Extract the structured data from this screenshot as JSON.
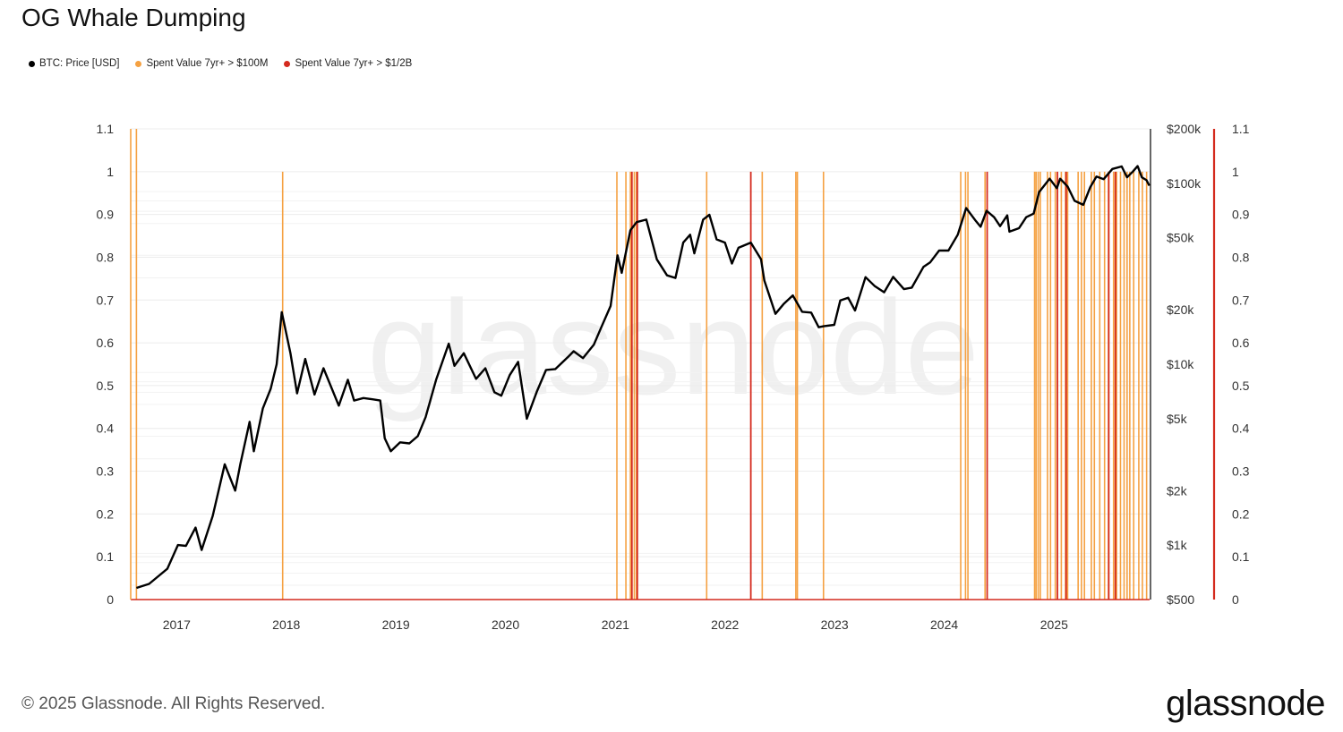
{
  "title": "OG Whale Dumping",
  "legend": [
    {
      "label": "BTC: Price [USD]",
      "color": "#000000"
    },
    {
      "label": "Spent Value 7yr+ > $100M",
      "color": "#f5a142"
    },
    {
      "label": "Spent Value 7yr+ > $1/2B",
      "color": "#d42a1e"
    }
  ],
  "footer": "© 2025 Glassnode. All Rights Reserved.",
  "logo": "glassnode",
  "chart_data": {
    "type": "line",
    "title": "OG Whale Dumping",
    "x_range": [
      "2016-08-01",
      "2025-11-15"
    ],
    "x_ticks": [
      "2017",
      "2018",
      "2019",
      "2020",
      "2021",
      "2022",
      "2023",
      "2024",
      "2025"
    ],
    "left_axis": {
      "range": [
        0,
        1.1
      ],
      "ticks": [
        "0",
        "0.1",
        "0.2",
        "0.3",
        "0.4",
        "0.5",
        "0.6",
        "0.7",
        "0.8",
        "0.9",
        "1",
        "1.1"
      ]
    },
    "right_axis_price": {
      "scale": "log",
      "range": [
        500,
        200000
      ],
      "ticks": [
        "$500",
        "$1k",
        "$2k",
        "$5k",
        "$10k",
        "$20k",
        "$50k",
        "$100k",
        "$200k"
      ],
      "tick_values": [
        500,
        1000,
        2000,
        5000,
        10000,
        20000,
        50000,
        100000,
        200000
      ]
    },
    "right_axis_2": {
      "range": [
        0,
        1.1
      ],
      "ticks": [
        "0",
        "0.1",
        "0.2",
        "0.3",
        "0.4",
        "0.5",
        "0.6",
        "0.7",
        "0.8",
        "0.9",
        "1",
        "1.1"
      ]
    },
    "grid": true,
    "legend_position": "top-left",
    "series": [
      {
        "name": "BTC: Price [USD]",
        "color": "#000000",
        "x": [
          "2016-08-20",
          "2016-10-01",
          "2016-12-01",
          "2017-01-05",
          "2017-02-01",
          "2017-03-05",
          "2017-03-25",
          "2017-05-01",
          "2017-06-10",
          "2017-07-15",
          "2017-08-01",
          "2017-09-01",
          "2017-09-15",
          "2017-10-15",
          "2017-11-10",
          "2017-11-30",
          "2017-12-17",
          "2018-01-15",
          "2018-02-06",
          "2018-03-05",
          "2018-04-05",
          "2018-05-05",
          "2018-06-25",
          "2018-07-25",
          "2018-08-15",
          "2018-09-15",
          "2018-10-15",
          "2018-11-10",
          "2018-11-25",
          "2018-12-15",
          "2019-01-15",
          "2019-02-15",
          "2019-03-15",
          "2019-04-10",
          "2019-05-15",
          "2019-06-26",
          "2019-07-15",
          "2019-08-15",
          "2019-09-25",
          "2019-10-26",
          "2019-11-25",
          "2019-12-18",
          "2020-01-15",
          "2020-02-12",
          "2020-03-12",
          "2020-04-15",
          "2020-05-15",
          "2020-06-15",
          "2020-07-28",
          "2020-08-15",
          "2020-09-15",
          "2020-10-21",
          "2020-11-15",
          "2020-12-16",
          "2021-01-08",
          "2021-01-22",
          "2021-02-20",
          "2021-03-13",
          "2021-04-14",
          "2021-05-19",
          "2021-06-22",
          "2021-07-20",
          "2021-08-15",
          "2021-09-07",
          "2021-09-21",
          "2021-10-20",
          "2021-11-10",
          "2021-12-04",
          "2022-01-01",
          "2022-01-24",
          "2022-02-15",
          "2022-03-28",
          "2022-05-01",
          "2022-05-12",
          "2022-06-18",
          "2022-07-15",
          "2022-08-15",
          "2022-09-15",
          "2022-10-15",
          "2022-11-09",
          "2022-11-25",
          "2022-12-31",
          "2023-01-20",
          "2023-02-15",
          "2023-03-10",
          "2023-04-14",
          "2023-05-15",
          "2023-06-15",
          "2023-07-15",
          "2023-08-20",
          "2023-09-15",
          "2023-10-24",
          "2023-11-15",
          "2023-12-15",
          "2024-01-15",
          "2024-02-15",
          "2024-03-14",
          "2024-04-15",
          "2024-05-01",
          "2024-05-21",
          "2024-06-15",
          "2024-07-05",
          "2024-07-29",
          "2024-08-05",
          "2024-09-06",
          "2024-09-30",
          "2024-10-25",
          "2024-11-12",
          "2024-12-17",
          "2025-01-10",
          "2025-01-21",
          "2025-02-15",
          "2025-03-10",
          "2025-04-08",
          "2025-05-01",
          "2025-05-22",
          "2025-06-15",
          "2025-07-14",
          "2025-08-14",
          "2025-09-01",
          "2025-09-20",
          "2025-10-06",
          "2025-10-20",
          "2025-11-05",
          "2025-11-14"
        ],
        "values": [
          580,
          610,
          740,
          1000,
          990,
          1250,
          940,
          1450,
          2800,
          2000,
          2800,
          4800,
          3300,
          5700,
          7300,
          10000,
          19400,
          11500,
          6900,
          10700,
          6800,
          9500,
          5900,
          8200,
          6300,
          6500,
          6400,
          6300,
          3900,
          3300,
          3700,
          3650,
          4000,
          5100,
          8200,
          13000,
          9800,
          11500,
          8300,
          9500,
          7000,
          6700,
          8700,
          10300,
          5000,
          7100,
          9300,
          9400,
          11000,
          11800,
          10800,
          12800,
          16000,
          21000,
          40000,
          32000,
          55000,
          61000,
          63000,
          38000,
          31000,
          30000,
          47000,
          52000,
          41000,
          63000,
          67000,
          49000,
          47000,
          36000,
          44000,
          47000,
          38000,
          29000,
          19000,
          21500,
          24000,
          19500,
          19300,
          16000,
          16200,
          16500,
          22500,
          23300,
          19800,
          30300,
          27000,
          25000,
          30400,
          26000,
          26500,
          34500,
          36500,
          42500,
          42500,
          52000,
          73000,
          62000,
          57500,
          70500,
          65000,
          58000,
          66500,
          54000,
          56500,
          65000,
          68000,
          89500,
          106000,
          94000,
          106000,
          96000,
          80000,
          76000,
          95000,
          109000,
          105500,
          120000,
          124000,
          108000,
          116000,
          124500,
          108000,
          104000,
          97000
        ]
      },
      {
        "name": "Spent Value 7yr+ > $100M",
        "color": "#f5a142",
        "x": [
          "2016-08-20",
          "2017-12-20",
          "2021-01-06",
          "2021-02-05",
          "2021-02-20",
          "2021-03-05",
          "2021-03-12",
          "2021-11-01",
          "2022-05-05",
          "2022-08-25",
          "2022-08-30",
          "2022-11-25",
          "2024-02-25",
          "2024-03-12",
          "2024-03-20",
          "2024-05-16",
          "2024-10-28",
          "2024-11-02",
          "2024-11-09",
          "2024-11-16",
          "2024-12-10",
          "2024-12-20",
          "2025-01-05",
          "2025-01-25",
          "2025-02-08",
          "2025-02-15",
          "2025-03-22",
          "2025-04-02",
          "2025-04-12",
          "2025-05-05",
          "2025-05-15",
          "2025-06-02",
          "2025-06-18",
          "2025-07-01",
          "2025-07-18",
          "2025-07-28",
          "2025-08-10",
          "2025-08-22",
          "2025-09-01",
          "2025-09-10",
          "2025-09-23",
          "2025-10-10",
          "2025-10-22",
          "2025-11-05"
        ],
        "values": [
          1.1,
          1,
          1,
          1,
          1,
          1,
          1,
          1,
          1,
          1,
          1,
          1,
          1,
          1,
          1,
          1,
          1,
          1,
          1,
          1,
          1,
          1,
          1,
          1,
          1,
          1,
          1,
          1,
          1,
          1,
          1,
          1,
          1,
          1,
          1,
          1,
          1,
          1,
          1,
          1,
          1,
          1,
          1,
          1
        ]
      },
      {
        "name": "Spent Value 7yr+ > $1/2B",
        "color": "#d42a1e",
        "x": [
          "2021-02-25",
          "2021-03-15",
          "2022-03-28",
          "2024-05-23",
          "2025-01-12",
          "2025-02-10",
          "2025-07-02",
          "2025-07-24"
        ],
        "values": [
          1,
          1,
          1,
          1,
          1,
          1,
          1,
          1
        ]
      }
    ]
  }
}
